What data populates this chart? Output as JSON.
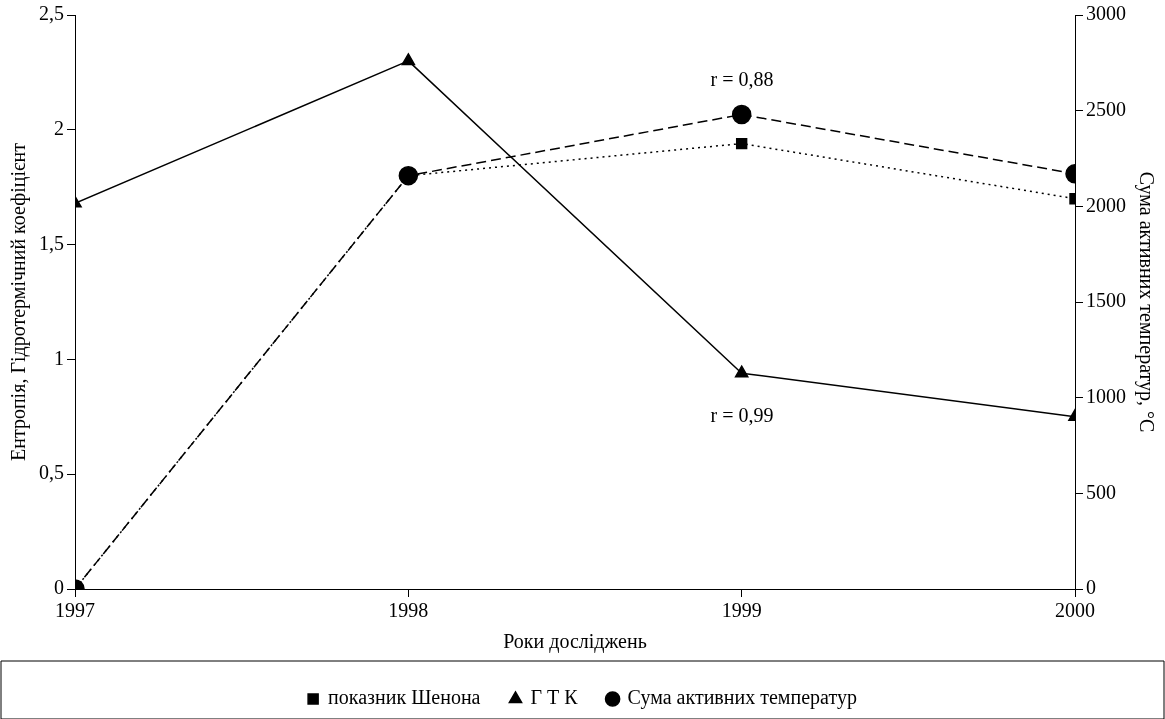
{
  "chart_data": {
    "type": "line",
    "xlabel": "Роки досліджень",
    "ylabel": "Ентропія, Гідротермічний коефіцієнт",
    "y2label": "Сума активних температур, °C",
    "x": [
      1997,
      1998,
      1999,
      2000
    ],
    "xlim": [
      1997,
      2000
    ],
    "xticks": [
      1997,
      1998,
      1999,
      2000
    ],
    "ylim": [
      0,
      2.5
    ],
    "yticks": [
      0,
      {
        "value": 0.5,
        "label": "0,5"
      },
      1,
      {
        "value": 1.5,
        "label": "1,5"
      },
      2,
      {
        "value": 2.5,
        "label": "2,5"
      }
    ],
    "y2lim": [
      0,
      3000
    ],
    "y2ticks": [
      0,
      500,
      1000,
      1500,
      2000,
      2500,
      3000
    ],
    "series": [
      {
        "name": "показник Шенона",
        "color": "#000000",
        "values": [
          0,
          1.8,
          1.94,
          1.7
        ],
        "marker": "square",
        "line_style": "dotted"
      },
      {
        "name": "Г Т К",
        "color": "#000000",
        "values": [
          1.68,
          2.3,
          0.94,
          0.75
        ],
        "marker": "triangle",
        "line_style": "solid"
      },
      {
        "name": "Сума активних температур",
        "color": "#000000",
        "values": [
          0,
          2160,
          2480,
          2170
        ],
        "marker": "circle",
        "line_style": "dashed",
        "axis": "y2"
      }
    ],
    "annotations": [
      "r = 0,88",
      "r = 0,99"
    ],
    "grid": false,
    "legend": "bottom"
  }
}
